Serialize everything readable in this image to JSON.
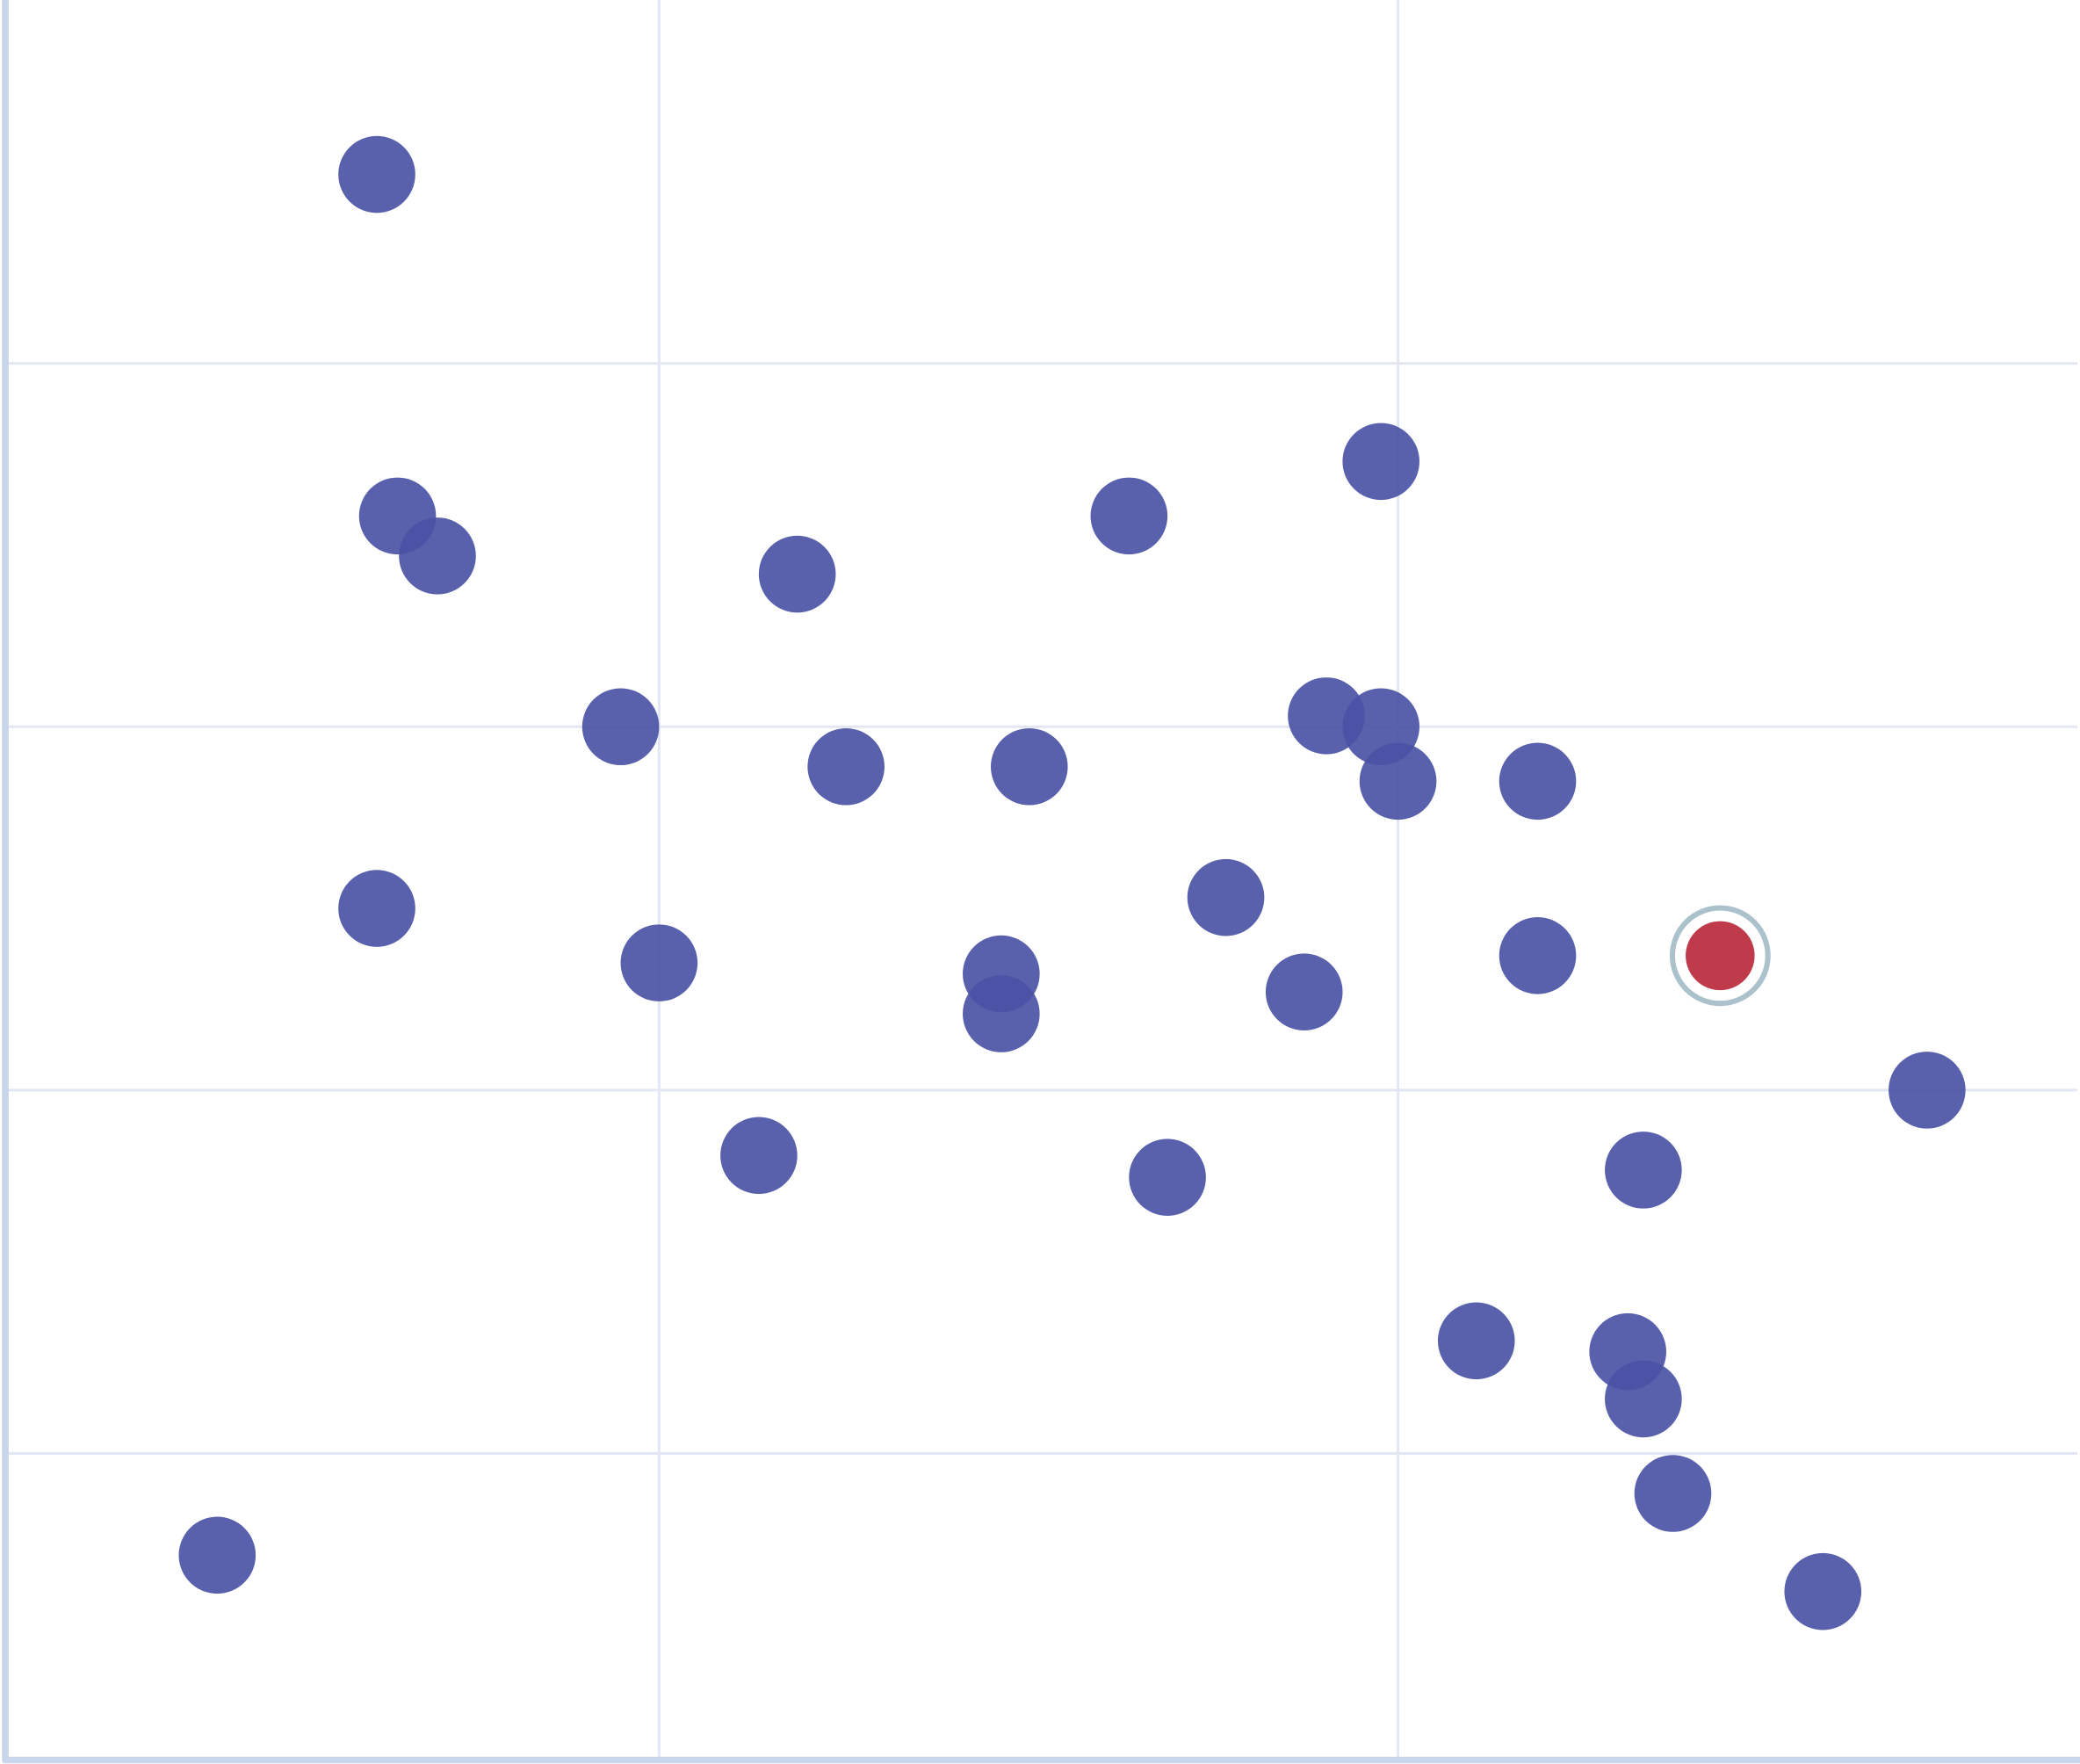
{
  "chart_data": {
    "type": "scatter",
    "title": "",
    "xlabel": "",
    "ylabel": "",
    "xlim": [
      0.117,
      2.923
    ],
    "ylim": [
      0.16,
      5.0
    ],
    "x_gridlines": [
      1,
      2
    ],
    "y_gridlines": [
      1,
      2,
      3,
      4
    ],
    "grid": true,
    "tick_labels_shown": false,
    "colors": {
      "point": "#4b53a5",
      "highlight": "#bf3a4b",
      "highlight_ring": "#abc1cb",
      "axis": "#c9d5ea",
      "grid": "#e3e7f3"
    },
    "points": [
      {
        "x": 0.618,
        "y": 4.52
      },
      {
        "x": 0.646,
        "y": 3.58
      },
      {
        "x": 0.7,
        "y": 3.47
      },
      {
        "x": 1.187,
        "y": 3.42
      },
      {
        "x": 1.636,
        "y": 3.58
      },
      {
        "x": 1.977,
        "y": 3.73
      },
      {
        "x": 0.948,
        "y": 3.0
      },
      {
        "x": 1.253,
        "y": 2.89
      },
      {
        "x": 1.501,
        "y": 2.89
      },
      {
        "x": 1.903,
        "y": 3.03
      },
      {
        "x": 1.977,
        "y": 3.0
      },
      {
        "x": 2.0,
        "y": 2.85
      },
      {
        "x": 2.189,
        "y": 2.85
      },
      {
        "x": 0.618,
        "y": 2.5
      },
      {
        "x": 1.0,
        "y": 2.35
      },
      {
        "x": 1.463,
        "y": 2.32
      },
      {
        "x": 1.463,
        "y": 2.21
      },
      {
        "x": 1.767,
        "y": 2.53
      },
      {
        "x": 1.873,
        "y": 2.27
      },
      {
        "x": 2.189,
        "y": 2.37
      },
      {
        "x": 2.436,
        "y": 2.37,
        "highlighted": true
      },
      {
        "x": 2.716,
        "y": 2.0
      },
      {
        "x": 1.135,
        "y": 1.82
      },
      {
        "x": 1.688,
        "y": 1.76
      },
      {
        "x": 2.332,
        "y": 1.78
      },
      {
        "x": 2.106,
        "y": 1.31
      },
      {
        "x": 2.311,
        "y": 1.28
      },
      {
        "x": 2.332,
        "y": 1.15
      },
      {
        "x": 2.372,
        "y": 0.89
      },
      {
        "x": 0.402,
        "y": 0.72
      },
      {
        "x": 2.575,
        "y": 0.62
      }
    ]
  }
}
